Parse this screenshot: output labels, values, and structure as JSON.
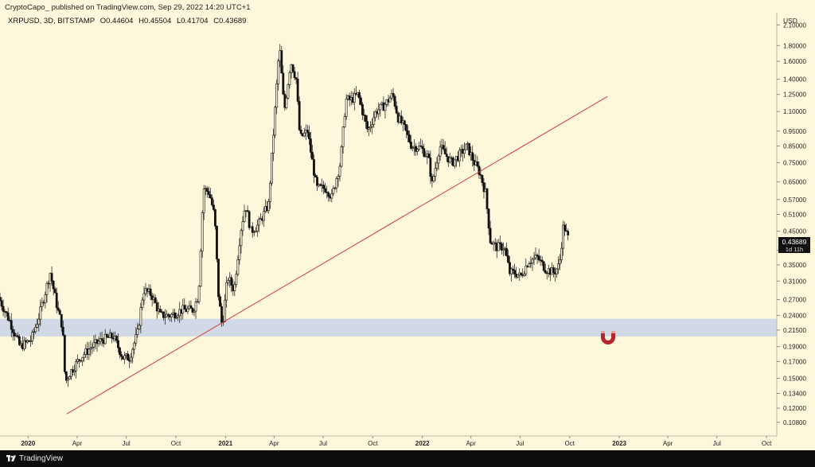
{
  "header": {
    "published": "CryptoCapo_ published on TradingView.com, Sep 29, 2022 14:20 UTC+1"
  },
  "ohlc": {
    "symbol": "XRPUSD, 3D, BITSTAMP",
    "open": "O0.44604",
    "high": "H0.45504",
    "low": "L0.41704",
    "close": "C0.43689"
  },
  "price_axis": {
    "currency": "USD",
    "last_price": "0.43689",
    "countdown": "1d 11h"
  },
  "footer": {
    "brand": "TradingView"
  },
  "colors": {
    "background": "#fdf8dc",
    "candle": "#000000",
    "trendline": "#d23c3c",
    "zone": "#c9d3e8",
    "magnet": "#b4262e"
  },
  "chart_data": {
    "type": "candlestick",
    "symbol": "XRPUSD",
    "timeframe": "3D",
    "exchange": "BITSTAMP",
    "y_scale": "log",
    "ylim": [
      0.0975,
      2.3
    ],
    "xlim": [
      "2019-11-10",
      "2023-10-20"
    ],
    "yticks": [
      "2.10000",
      "1.80000",
      "1.60000",
      "1.40000",
      "1.25000",
      "1.10000",
      "0.95000",
      "0.85000",
      "0.75000",
      "0.65000",
      "0.57000",
      "0.51000",
      "0.45000",
      "0.39000",
      "0.35000",
      "0.31000",
      "0.27000",
      "0.24000",
      "0.21500",
      "0.19000",
      "0.17000",
      "0.15000",
      "0.13400",
      "0.12000",
      "0.10800"
    ],
    "xticks": [
      {
        "label": "2020",
        "date": "2020-01-01",
        "bold": true
      },
      {
        "label": "Apr",
        "date": "2020-04-01"
      },
      {
        "label": "Jul",
        "date": "2020-07-01"
      },
      {
        "label": "Oct",
        "date": "2020-10-01"
      },
      {
        "label": "2021",
        "date": "2021-01-01",
        "bold": true
      },
      {
        "label": "Apr",
        "date": "2021-04-01"
      },
      {
        "label": "Jul",
        "date": "2021-07-01"
      },
      {
        "label": "Oct",
        "date": "2021-10-01"
      },
      {
        "label": "2022",
        "date": "2022-01-01",
        "bold": true
      },
      {
        "label": "Apr",
        "date": "2022-04-01"
      },
      {
        "label": "Jul",
        "date": "2022-07-01"
      },
      {
        "label": "Oct",
        "date": "2022-10-01"
      },
      {
        "label": "2023",
        "date": "2023-01-01",
        "bold": true
      },
      {
        "label": "Apr",
        "date": "2023-04-01"
      },
      {
        "label": "Jul",
        "date": "2023-07-01"
      },
      {
        "label": "Oct",
        "date": "2023-10-01"
      }
    ],
    "price_path": [
      [
        "2019-11-10",
        0.275
      ],
      [
        "2019-12-01",
        0.23
      ],
      [
        "2019-12-20",
        0.19
      ],
      [
        "2020-01-10",
        0.2
      ],
      [
        "2020-01-25",
        0.24
      ],
      [
        "2020-02-14",
        0.33
      ],
      [
        "2020-02-28",
        0.25
      ],
      [
        "2020-03-08",
        0.22
      ],
      [
        "2020-03-13",
        0.145
      ],
      [
        "2020-03-20",
        0.155
      ],
      [
        "2020-04-10",
        0.175
      ],
      [
        "2020-05-01",
        0.19
      ],
      [
        "2020-05-20",
        0.2
      ],
      [
        "2020-06-10",
        0.205
      ],
      [
        "2020-06-28",
        0.175
      ],
      [
        "2020-07-10",
        0.175
      ],
      [
        "2020-07-25",
        0.21
      ],
      [
        "2020-08-05",
        0.29
      ],
      [
        "2020-08-20",
        0.28
      ],
      [
        "2020-09-05",
        0.24
      ],
      [
        "2020-09-25",
        0.24
      ],
      [
        "2020-10-15",
        0.25
      ],
      [
        "2020-11-05",
        0.25
      ],
      [
        "2020-11-15",
        0.28
      ],
      [
        "2020-11-24",
        0.62
      ],
      [
        "2020-12-05",
        0.6
      ],
      [
        "2020-12-15",
        0.5
      ],
      [
        "2020-12-22",
        0.28
      ],
      [
        "2020-12-29",
        0.22
      ],
      [
        "2021-01-08",
        0.32
      ],
      [
        "2021-01-20",
        0.29
      ],
      [
        "2021-02-01",
        0.45
      ],
      [
        "2021-02-10",
        0.55
      ],
      [
        "2021-02-20",
        0.45
      ],
      [
        "2021-03-05",
        0.47
      ],
      [
        "2021-03-25",
        0.55
      ],
      [
        "2021-04-05",
        1.05
      ],
      [
        "2021-04-14",
        1.8
      ],
      [
        "2021-04-23",
        1.1
      ],
      [
        "2021-05-05",
        1.6
      ],
      [
        "2021-05-15",
        1.4
      ],
      [
        "2021-05-22",
        0.9
      ],
      [
        "2021-06-05",
        0.95
      ],
      [
        "2021-06-22",
        0.62
      ],
      [
        "2021-07-10",
        0.62
      ],
      [
        "2021-07-20",
        0.58
      ],
      [
        "2021-08-05",
        0.75
      ],
      [
        "2021-08-15",
        1.2
      ],
      [
        "2021-08-25",
        1.2
      ],
      [
        "2021-09-07",
        1.25
      ],
      [
        "2021-09-15",
        1.1
      ],
      [
        "2021-09-25",
        0.95
      ],
      [
        "2021-10-10",
        1.1
      ],
      [
        "2021-10-25",
        1.15
      ],
      [
        "2021-11-10",
        1.25
      ],
      [
        "2021-11-20",
        1.05
      ],
      [
        "2021-12-01",
        0.98
      ],
      [
        "2021-12-15",
        0.85
      ],
      [
        "2022-01-01",
        0.84
      ],
      [
        "2022-01-15",
        0.78
      ],
      [
        "2022-01-22",
        0.64
      ],
      [
        "2022-02-05",
        0.85
      ],
      [
        "2022-02-15",
        0.8
      ],
      [
        "2022-02-28",
        0.75
      ],
      [
        "2022-03-15",
        0.8
      ],
      [
        "2022-03-28",
        0.85
      ],
      [
        "2022-04-10",
        0.75
      ],
      [
        "2022-04-20",
        0.7
      ],
      [
        "2022-05-01",
        0.6
      ],
      [
        "2022-05-10",
        0.42
      ],
      [
        "2022-05-20",
        0.4
      ],
      [
        "2022-06-05",
        0.4
      ],
      [
        "2022-06-15",
        0.33
      ],
      [
        "2022-06-25",
        0.33
      ],
      [
        "2022-07-05",
        0.32
      ],
      [
        "2022-07-20",
        0.36
      ],
      [
        "2022-08-05",
        0.37
      ],
      [
        "2022-08-20",
        0.34
      ],
      [
        "2022-09-05",
        0.33
      ],
      [
        "2022-09-15",
        0.35
      ],
      [
        "2022-09-23",
        0.48
      ],
      [
        "2022-09-26",
        0.45
      ],
      [
        "2022-09-29",
        0.437
      ]
    ],
    "trendline": {
      "from": [
        "2020-03-13",
        0.115
      ],
      "to": [
        "2022-12-10",
        1.23
      ]
    },
    "support_zone": {
      "low": 0.205,
      "high": 0.234
    }
  }
}
